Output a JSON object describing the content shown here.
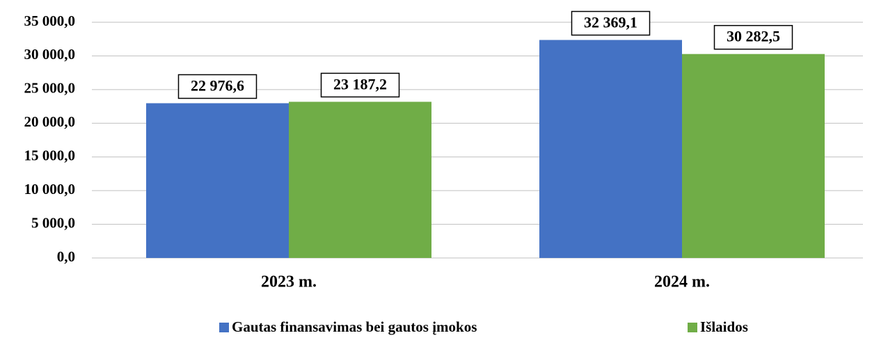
{
  "chart_data": {
    "type": "bar",
    "categories": [
      "2023 m.",
      "2024 m."
    ],
    "series": [
      {
        "name": "Gautas finansavimas bei gautos įmokos",
        "color": "#4472c4",
        "values": [
          22976.6,
          32369.1
        ],
        "value_labels": [
          "22 976,6",
          "32 369,1"
        ]
      },
      {
        "name": "Išlaidos",
        "color": "#70ad47",
        "values": [
          23187.2,
          30282.5
        ],
        "value_labels": [
          "23 187,2",
          "30 282,5"
        ]
      }
    ],
    "ylim": [
      0,
      35000
    ],
    "yticks": [
      {
        "value": 0,
        "label": "0,0"
      },
      {
        "value": 5000,
        "label": "5 000,0"
      },
      {
        "value": 10000,
        "label": "10 000,0"
      },
      {
        "value": 15000,
        "label": "15 000,0"
      },
      {
        "value": 20000,
        "label": "20 000,0"
      },
      {
        "value": 25000,
        "label": "25 000,0"
      },
      {
        "value": 30000,
        "label": "30 000,0"
      },
      {
        "value": 35000,
        "label": "35 000,0"
      }
    ],
    "grid": true,
    "legend": "bottom"
  }
}
